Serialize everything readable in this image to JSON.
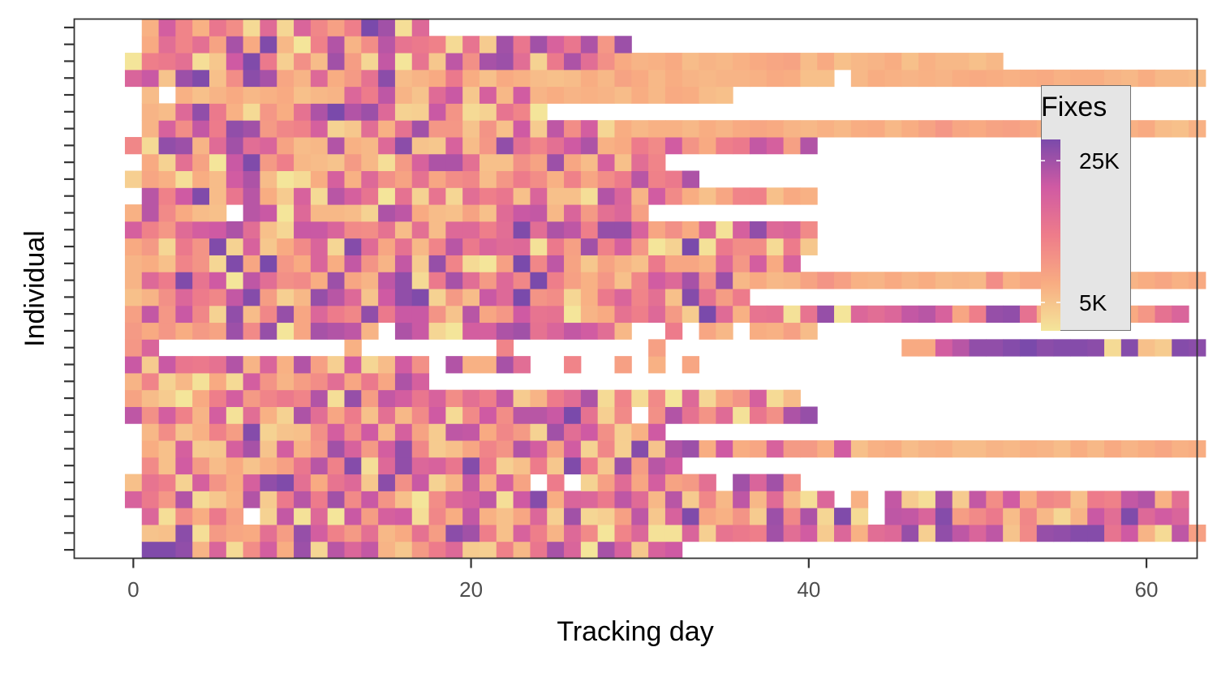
{
  "chart_data": {
    "type": "heatmap",
    "xlabel": "Tracking day",
    "ylabel": "Individual",
    "xlim": [
      -3.5,
      63
    ],
    "x_ticks": [
      0,
      20,
      40,
      60
    ],
    "x_tick_labels": [
      "0",
      "20",
      "40",
      "60"
    ],
    "n_individuals": 32,
    "y_tick_labels": "none",
    "grid": false,
    "legend": {
      "title": "Fixes",
      "placement": "inside-right",
      "breaks": [
        25000,
        5000
      ],
      "labels": [
        "25K",
        "5K"
      ],
      "range": [
        1000,
        28000
      ],
      "colors": [
        "#f4e59a",
        "#f8ac82",
        "#ee7c8a",
        "#d05aa3",
        "#7a4aab"
      ]
    },
    "frame_color": "#333333",
    "missing": "No fixes on a given day are left blank (white).",
    "rows": [
      "z0: 1-30 'yyvDf3PiFt4oemD8LVd76TCXrf0rg8gk'",
      "z1: 1-63 '9Aw2LHGaKuiTLaCGZKwsUAgUDdQ0Se11f6YWUsbj7eEbdu6vnfn9QuvxxYkD3nJ'",
      "z2: 1-6 'e2PFWJ' | 8-43 '5m1d0lKhj2RFmEAHe6s46Jn8gyHEN7tRq4y3' | 45-62 'nmfxKQWBRC4Dlbydjf'",
      "z3: 0-41 'gWMp38Ep7WoVsQlNA0Pehn2kxFfeWncCo7RCnCcC2e' | 43-43 'E' | 45-45 'm' | 46-62 '72r7mPjFRPAVTmpEa'",
      "z4: 0-23 'AYU5hNFhvyaGYd8wOl5DmEhI' | 25-25 'V' | 27-34 '5JcHiILa' | 36-38 'sfs' | 39-39 'P'",
      "z5: 1-32 'QAjLBG9EJXoTx2dvegXxV6AV8yV8tKoj'",
      "z6: 1-18 'FAh78hr9iEMsgLivR7' | 19-23 'AHSNp' | 24-33 'iIj5R6x9pt' | 34-34 'F' | 35-35 'k' | 36-36 'F' | 37-37 'H' | 38-38 'g' | 39-42 'LLFj' | 43-45 'AEF' | 46-47 'BD' | 48-52 'EBBDC' | 53-54 'ED' | 55-57 'BFC' | 58-59 'GD' | 60-63 'FHEF'",
      "z7: 1-31 'CP9ETKx59AOiPkChI7nmGRL5sbkO6Ek'",
      "z8: 0-29 'nOiTDi1bE5qbHVAaCQk3QkPoolzZ6Q' | 31-40 'OpZNc1XOqu'",
      "z9: 0-39 'IB70GUiLSWSp2uKmiXgPaUm7DVbq3S3Q0d4HNh3B'",
      "z10: 0-17 'DS5C1G3iNDKPbHWHqh'",
      "z11: 0-17 'l7lXWZpDfEpJ6j4BjO' | 19-19 'p' | 20-21 'EE' | 22-22 'r' | 23-23 'b' | 26-26 'S' | 29-29 'J' | 31-31 'E' | 33-33 'H'",
      "z12: 0-1 'Mf' | 13-13 'E' | 22-22 'S' | 31-31 'J' | 46-47 'GG' | 48-50 'iov' | 51-63 'vxzwxxw3xA7xw'",
      "z13: 0-10 'LGMFLItQu0H' | 11-13 'rpn' | 14-14 'D' | 16-29 'ql40ihqsZfmjbC' | 32-32 'V' | 34-34 'H' | 35-35 'C' | 37-39 'FEJ' | 40-40 'B'",
      "z14: 0-44 'JmMlR5vBRuHeVRvWllN9oHMkYZ0DGZUdL7zcEYZ1Yu0eb' | 45-50 'emogHU' | 51-53 'uvZ' | 54-58 'E6qAV' | 59-62 'GMZf'",
      "z15: 0-36 'ADOeVRmxK6Cuod9kvy5LBldzNP4EWfSaAxZKV'",
      "z16: 0-25 'DdVyYk0nbOQFtHDnv3WrbLdRzU' | 26-35 'JEMARjdrOt' | 36-36 'C' | 37-42 'GCDINJ' | 43-44 'ED' | 45-45 'G' | 46-48 'DFC' | 49-50 'DC' | 51-52 'PE' | 53-63 'HHIJLFDFHEG'",
      "z17: 0-1 'DF' | 2-2 'A' | 3-28 'SN4yHzMGfFmNDm7uS30JzRnI8I' | 29-37 'DAWHHEeMi' | 38-39 'Gg'",
      "z18: 0-40 'GL4WNy5g8GQf4xcHZCSoWfcd1WJsThM05z1WPP3V8'",
      "z19: 0-20 'hTMcikqbA4llfQPZBaBdd' | 21-21 'U' | 22-22 'b' | 23-23 'y' | 24-40 'bqnUuugHOGd1hvdfQ'",
      "z20: 0-5 'EoQGBA' | 7-12 'ol0dCC' | 13-18 'B5qnGB' | 19-19 'A' | 20-22 'IAc' | 23-25 'lmC' | 26-26 'f' | 27-30 'LaeJ'",
      "z21: 1-5 'oTkyB' | 6-12 'XoF7g3o' | 13-15 'hY0' | 16-22 'Z5Y4bUX' | 23-23 'A' | 24-31 'fAA2pfDj' | 32-40 'QFAHSTAGE'",
      "z22: 0-3 '6HE2' | 4-5 'FB' | 6-10 'jqB03' | 11-22 'FhEdOIZHPRBM' | 23-24 'VP' | 25-28 'ETHP' | 29-30 'Vo' | 31-33 'TWq'",
      "z23: 1-6 'G5aI0l' | 7-12 'yLUCB9' | 13-20 'LC2Lgqqa' | 21-31 'AAOItHBhAbS'",
      "z24: 0-38 'R3vtDcsbfIBCpECdw98gBMvaSakqEGVQjNGUWmhJp'",
      "z25: 1-3 'DgP' | 4-29 'mVvsLRTh58bEZsMM9NAk7nPi4F' | 30-46 'CEECFDGHGDCECFGCF' | 47-54 'IMHGIJHF' | 55-63 'DDFDEGBAE'",
      "z26: 1-24 'DBdvWE3MFZqzptd56lN35YS0'",
      "z27: 1-1 'B' | 3-3 'E' | 4-6 'ADG' | 7-9 'CEG' | 10-23 'ACDeVnD9cl8hCj' | 24-27 'DFDE' | 28-35 'DBFCGFBA'",
      "z28: 0-4 'fl9ty' | 5-6 'AP' | 7-10 'wrHD' | 11-13 'dFL' | 14-20 'ZwBDGWF' | 21-21 'A' | 22-27 'GEBABF' | 28-28 'C' | 29-33 'IGCFD' | 34-37 'CDDE' | 38-41 'GFAA' | 43-45 'CFE' | 46-49 'DEDF' | 50-50 'G' | 51-52 'FE' | 53-55 'FGE' | 56-63 'FFDCFCCB'",
      "z29: 0-28 '0UWa28kyW6OBsK4m0Y8nOrtb5WqbO' | 29-30 'GD' | 31-36 'EGBDCE' | 37-40 'GHIB' | 41-43 'GAC' | 44-48 'DFAEC' | 49-49 'C' | 50-51 'AC'",
      "z30: 1-29 'GbSaIrGyC0TpDPoYWT3Y7sXsgXqMt'",
      "z31: 1-17 'EiSEXP3c4fRJUzs2d'"
    ]
  }
}
